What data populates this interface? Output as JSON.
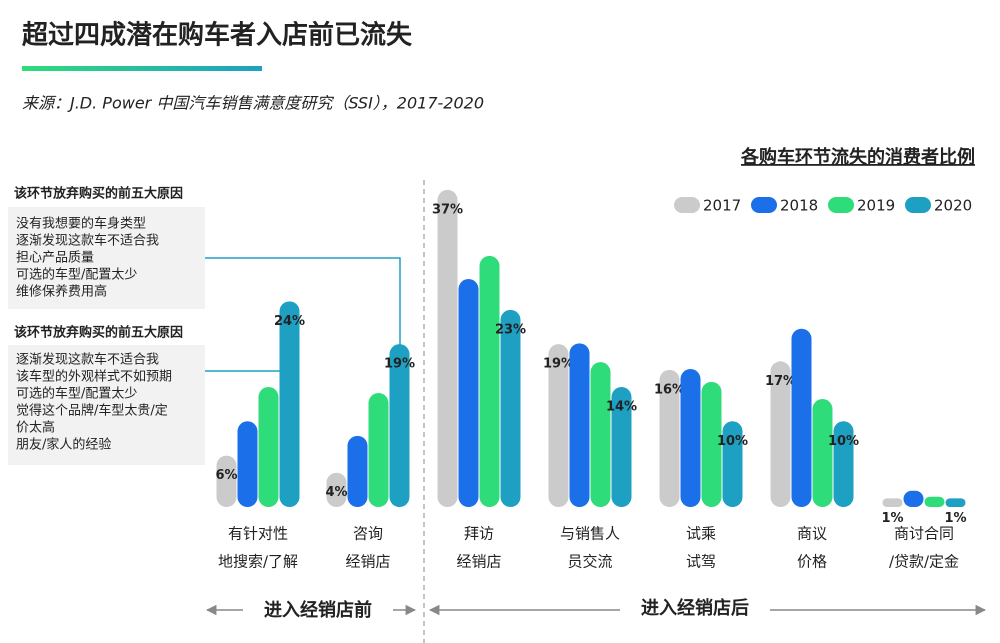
{
  "header": {
    "title": "超过四成潜在购车者入店前已流失",
    "source": "来源：J.D. Power 中国汽车销售满意度研究（SSI），2017-2020"
  },
  "reason_boxes": [
    {
      "heading": "该环节放弃购买的前五大原因",
      "items": [
        "没有我想要的车身类型",
        "逐渐发现这款车不适合我",
        "担心产品质量",
        "可选的车型/配置太少",
        "维修保养费用高"
      ]
    },
    {
      "heading": "该环节放弃购买的前五大原因",
      "items": [
        "逐渐发现这款车不适合我",
        "该车型的外观样式不如预期",
        "可选的车型/配置太少",
        "觉得这个品牌/车型太贵/定",
        "价太高",
        "朋友/家人的经验"
      ]
    }
  ],
  "stages": [
    "进入经销店前",
    "进入经销店后"
  ],
  "chart_data": {
    "type": "bar",
    "title": "各购车环节流失的消费者比例",
    "categories": [
      [
        "有针对性",
        "地搜索/了解"
      ],
      [
        "咨询",
        "经销店"
      ],
      [
        "拜访",
        "经销店"
      ],
      [
        "与销售人",
        "员交流"
      ],
      [
        "试乘",
        "试驾"
      ],
      [
        "商议",
        "价格"
      ],
      [
        "商讨合同",
        "/贷款/定金"
      ]
    ],
    "series": [
      {
        "name": "2017",
        "color": "#cbcbcb",
        "values": [
          6,
          4,
          37,
          19,
          16,
          17,
          1
        ],
        "value_labels": [
          "6%",
          "4%",
          "37%",
          "19%",
          "16%",
          "17%",
          "1%"
        ]
      },
      {
        "name": "2018",
        "color": "#1b6fe8",
        "values": [
          10,
          8.3,
          26.6,
          19.1,
          16.1,
          20.8,
          1.9
        ]
      },
      {
        "name": "2019",
        "color": "#2fdc7a",
        "values": [
          14,
          13.3,
          29.3,
          16.9,
          14.6,
          12.6,
          1.2
        ]
      },
      {
        "name": "2020",
        "color": "#1ea0c3",
        "values": [
          24,
          19,
          23,
          14,
          10,
          10,
          1
        ],
        "value_labels": [
          "24%",
          "19%",
          "23%",
          "14%",
          "10%",
          "10%",
          "1%"
        ]
      }
    ],
    "legend": "top-right"
  }
}
